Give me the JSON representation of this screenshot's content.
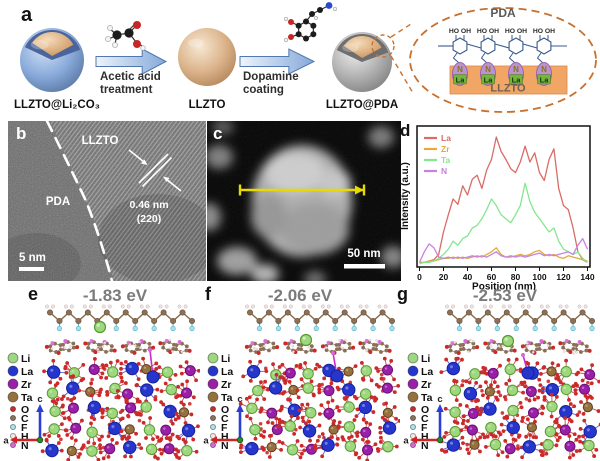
{
  "panel_a": {
    "label": "a",
    "step1": {
      "particle": "LLZTO@Li₂CO₃",
      "arrow_line1": "Acetic acid",
      "arrow_line2": "treatment"
    },
    "step2": {
      "particle": "LLZTO",
      "arrow_line1": "Dopamine",
      "arrow_line2": "coating"
    },
    "step3": {
      "particle": "LLZTO@PDA"
    },
    "inset": {
      "title": "PDA",
      "hydroxyl_labels": [
        "HO",
        "OH",
        "HO",
        "OH",
        "HO",
        "OH",
        "HO",
        "OH"
      ],
      "n_label": "N",
      "la_label": "La",
      "substrate_label": "LLZTO",
      "outline_color": "#c8702e",
      "substrate_color": "#f2a666"
    }
  },
  "panel_b": {
    "label": "b",
    "phase_top": "LLZTO",
    "phase_left": "PDA",
    "d_spacing": "0.46 nm",
    "lattice_plane": "(220)",
    "scale_bar": "5 nm"
  },
  "panel_c": {
    "label": "c",
    "scale_bar": "50 nm"
  },
  "panel_d": {
    "label": "d",
    "chart_data": {
      "type": "line",
      "title": "",
      "xlabel": "Position (nm)",
      "ylabel": "Intensity (a.u.)",
      "xlim": [
        0,
        140
      ],
      "xticks": [
        0,
        20,
        40,
        60,
        80,
        100,
        120,
        140
      ],
      "grid": false,
      "legend_position": "upper-left",
      "x": [
        0,
        4,
        8,
        12,
        16,
        20,
        24,
        28,
        32,
        36,
        40,
        44,
        48,
        52,
        56,
        60,
        64,
        68,
        72,
        76,
        80,
        84,
        88,
        92,
        96,
        100,
        104,
        108,
        112,
        116,
        120,
        124,
        128,
        132,
        136,
        140
      ],
      "series": [
        {
          "name": "La",
          "color": "#d96c66",
          "values": [
            0.02,
            0.02,
            0.03,
            0.04,
            0.08,
            0.25,
            0.38,
            0.5,
            0.46,
            0.6,
            0.53,
            0.65,
            0.68,
            0.58,
            0.72,
            0.8,
            0.97,
            0.86,
            0.8,
            0.73,
            0.7,
            0.78,
            0.9,
            0.78,
            0.85,
            0.7,
            0.64,
            0.8,
            0.88,
            0.58,
            0.45,
            0.42,
            0.28,
            0.1,
            0.04,
            0.02
          ]
        },
        {
          "name": "Zr",
          "color": "#e6a93e",
          "values": [
            0.02,
            0.02,
            0.03,
            0.03,
            0.04,
            0.05,
            0.05,
            0.06,
            0.05,
            0.06,
            0.05,
            0.06,
            0.07,
            0.06,
            0.08,
            0.1,
            0.13,
            0.08,
            0.06,
            0.06,
            0.07,
            0.08,
            0.07,
            0.08,
            0.1,
            0.11,
            0.08,
            0.07,
            0.08,
            0.06,
            0.05,
            0.07,
            0.06,
            0.05,
            0.04,
            0.03
          ]
        },
        {
          "name": "Ta",
          "color": "#85e690",
          "values": [
            0.01,
            0.02,
            0.02,
            0.03,
            0.05,
            0.08,
            0.12,
            0.18,
            0.15,
            0.2,
            0.22,
            0.28,
            0.3,
            0.35,
            0.42,
            0.5,
            0.45,
            0.38,
            0.35,
            0.32,
            0.38,
            0.45,
            0.62,
            0.48,
            0.4,
            0.35,
            0.3,
            0.25,
            0.28,
            0.18,
            0.12,
            0.1,
            0.08,
            0.1,
            0.05,
            0.02
          ]
        },
        {
          "name": "N",
          "color": "#c583e0",
          "values": [
            0.02,
            0.1,
            0.16,
            0.13,
            0.06,
            0.05,
            0.06,
            0.05,
            0.06,
            0.05,
            0.06,
            0.07,
            0.06,
            0.07,
            0.06,
            0.08,
            0.1,
            0.07,
            0.06,
            0.07,
            0.06,
            0.07,
            0.06,
            0.07,
            0.08,
            0.09,
            0.07,
            0.08,
            0.07,
            0.08,
            0.09,
            0.1,
            0.08,
            0.15,
            0.2,
            0.12
          ]
        }
      ]
    }
  },
  "structure_panels": {
    "panels": [
      {
        "label": "e",
        "energy": "-1.83 eV"
      },
      {
        "label": "f",
        "energy": "-2.06 eV"
      },
      {
        "label": "g",
        "energy": "-2.53 eV"
      }
    ],
    "energy_color": "#7b7b7b",
    "legend": [
      {
        "element": "Li",
        "color": "#9ed87e",
        "size": "large"
      },
      {
        "element": "La",
        "color": "#2636cc",
        "size": "large"
      },
      {
        "element": "Zr",
        "color": "#9a1fa8",
        "size": "large"
      },
      {
        "element": "Ta",
        "color": "#96713d",
        "size": "large"
      },
      {
        "element": "O",
        "color": "#cc2a2a",
        "size": "small"
      },
      {
        "element": "C",
        "color": "#8a7058",
        "size": "small"
      },
      {
        "element": "F",
        "color": "#a8dfe8",
        "size": "small"
      },
      {
        "element": "H",
        "color": "#f2e4e4",
        "size": "small"
      },
      {
        "element": "N",
        "color": "#d966d9",
        "size": "small"
      }
    ],
    "axes": {
      "vertical_label": "c",
      "horizontal_label": "a",
      "vertical_color": "#2b3fd4",
      "horizontal_color": "#d42222",
      "origin_color": "#2a8a2a"
    }
  }
}
